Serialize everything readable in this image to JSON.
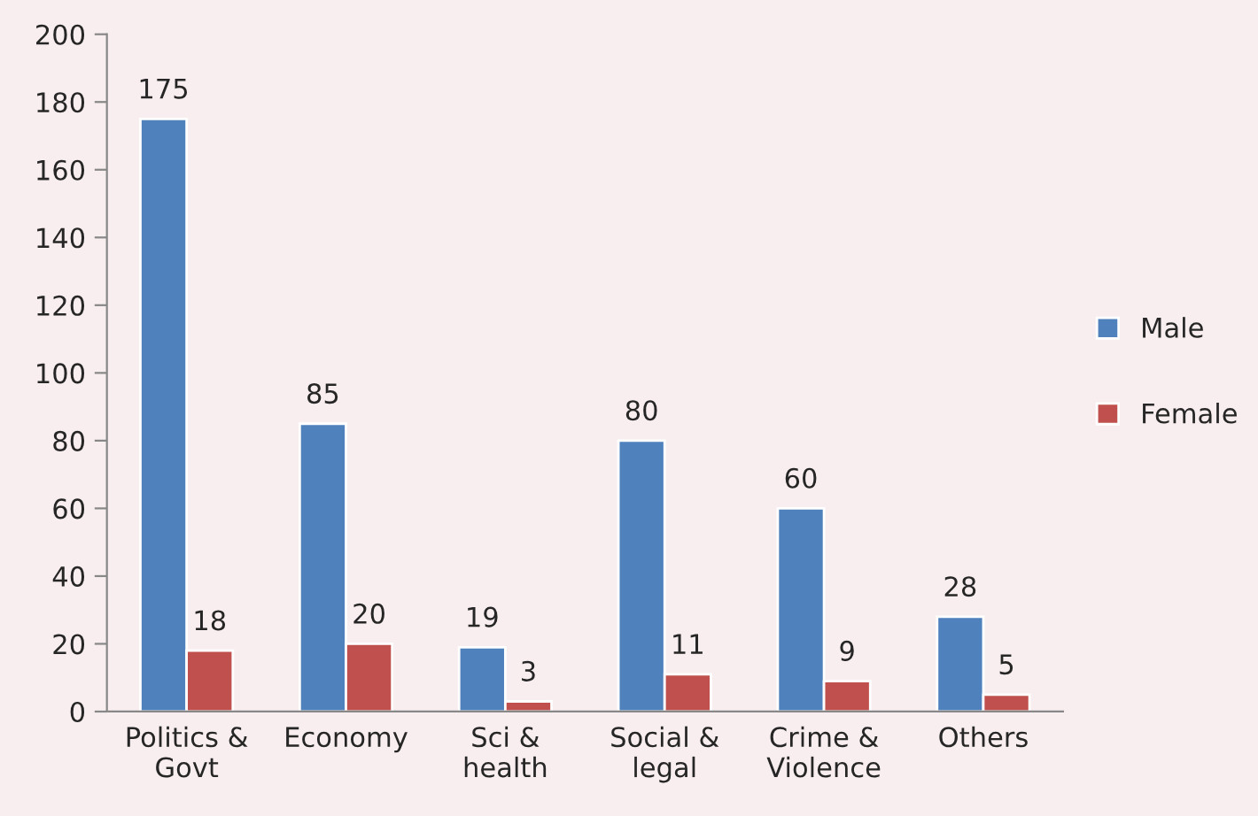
{
  "chart_data": {
    "type": "bar",
    "categories": [
      "Politics & Govt",
      "Economy",
      "Sci & health",
      "Social & legal",
      "Crime & Violence",
      "Others"
    ],
    "series": [
      {
        "name": "Male",
        "color": "#4f81bd",
        "values": [
          175,
          85,
          19,
          80,
          60,
          28
        ]
      },
      {
        "name": "Female",
        "color": "#c0504d",
        "values": [
          18,
          20,
          3,
          11,
          9,
          5
        ]
      }
    ],
    "ylim": [
      0,
      200
    ],
    "yticks": [
      0,
      20,
      40,
      60,
      80,
      100,
      120,
      140,
      160,
      180,
      200
    ],
    "grid": false,
    "legend": "right",
    "data_labels": true
  }
}
